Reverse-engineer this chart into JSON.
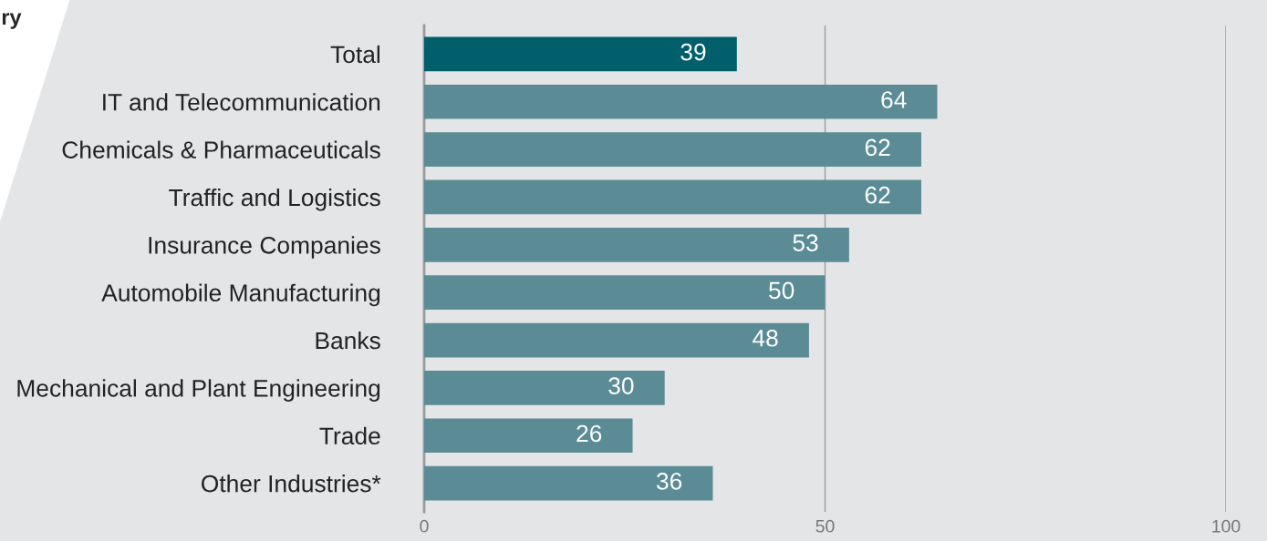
{
  "chart_data": {
    "type": "bar",
    "orientation": "horizontal",
    "categories": [
      "Total",
      "IT and Telecommunication",
      "Chemicals & Pharmaceuticals",
      "Traffic and Logistics",
      "Insurance Companies",
      "Automobile Manufacturing",
      "Banks",
      "Mechanical and Plant Engineering",
      "Trade",
      "Other Industries*"
    ],
    "values": [
      39,
      64,
      62,
      62,
      53,
      50,
      48,
      30,
      26,
      36
    ],
    "colors": [
      "#005f6b",
      "#5b8c96",
      "#5b8c96",
      "#5b8c96",
      "#5b8c96",
      "#5b8c96",
      "#5b8c96",
      "#5b8c96",
      "#5b8c96",
      "#5b8c96"
    ],
    "xlim": [
      0,
      100
    ],
    "xticks": [
      0,
      50,
      100
    ],
    "grid": "x",
    "data_labels": true,
    "annotations": [
      "ry"
    ]
  }
}
